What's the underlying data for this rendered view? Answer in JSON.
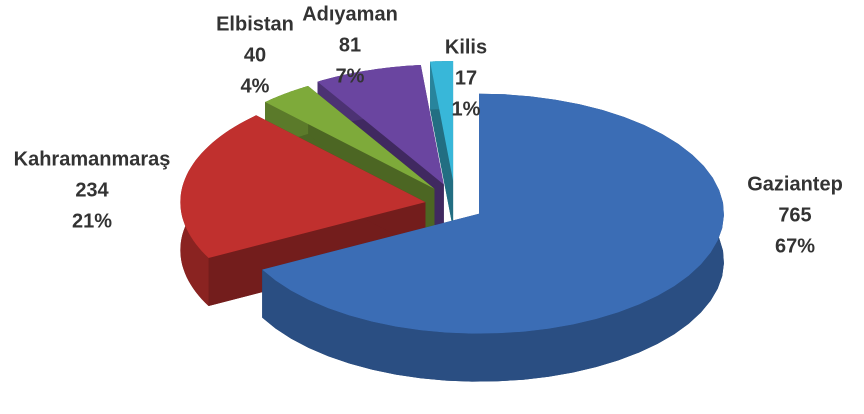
{
  "chart_data": {
    "type": "pie",
    "categories": [
      "Gaziantep",
      "Kahramanmaraş",
      "Elbistan",
      "Adıyaman",
      "Kilis"
    ],
    "values": [
      765,
      234,
      40,
      81,
      17
    ],
    "percent_labels": [
      "67%",
      "21%",
      "4%",
      "7%",
      "1%"
    ],
    "colors": [
      "#3b6db5",
      "#c0302e",
      "#7eaa3a",
      "#6a45a0",
      "#38b7d9"
    ]
  }
}
